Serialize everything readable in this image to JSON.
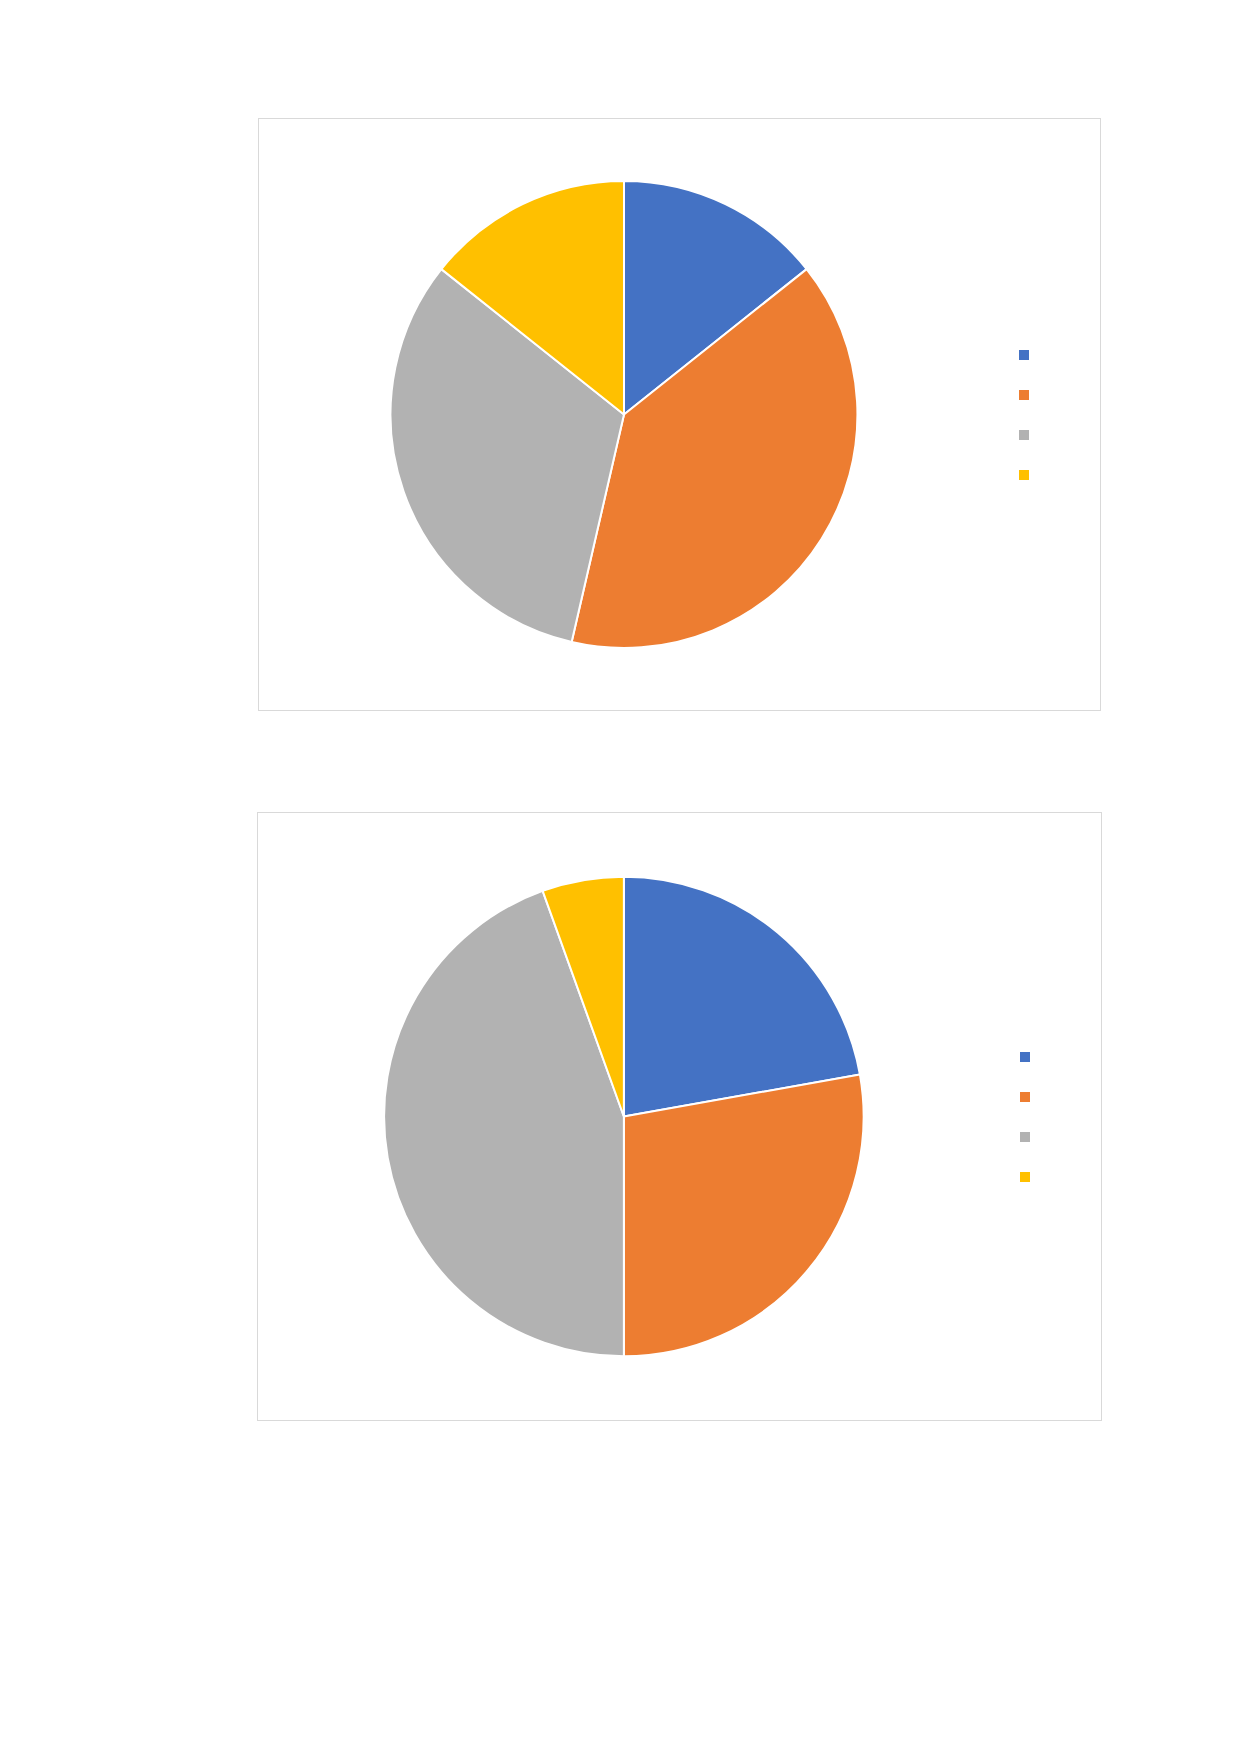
{
  "chart_data": [
    {
      "type": "pie",
      "categories": [
        null,
        null,
        null,
        null
      ],
      "values": [
        14.3,
        39.3,
        32.1,
        14.3
      ],
      "colors": [
        "#4472c4",
        "#ed7d31",
        "#b2b2b2",
        "#ffc000"
      ]
    },
    {
      "type": "pie",
      "categories": [
        null,
        null,
        null,
        null
      ],
      "values": [
        22.2,
        27.8,
        44.5,
        5.5
      ],
      "colors": [
        "#4472c4",
        "#ed7d31",
        "#b2b2b2",
        "#ffc000"
      ]
    }
  ]
}
